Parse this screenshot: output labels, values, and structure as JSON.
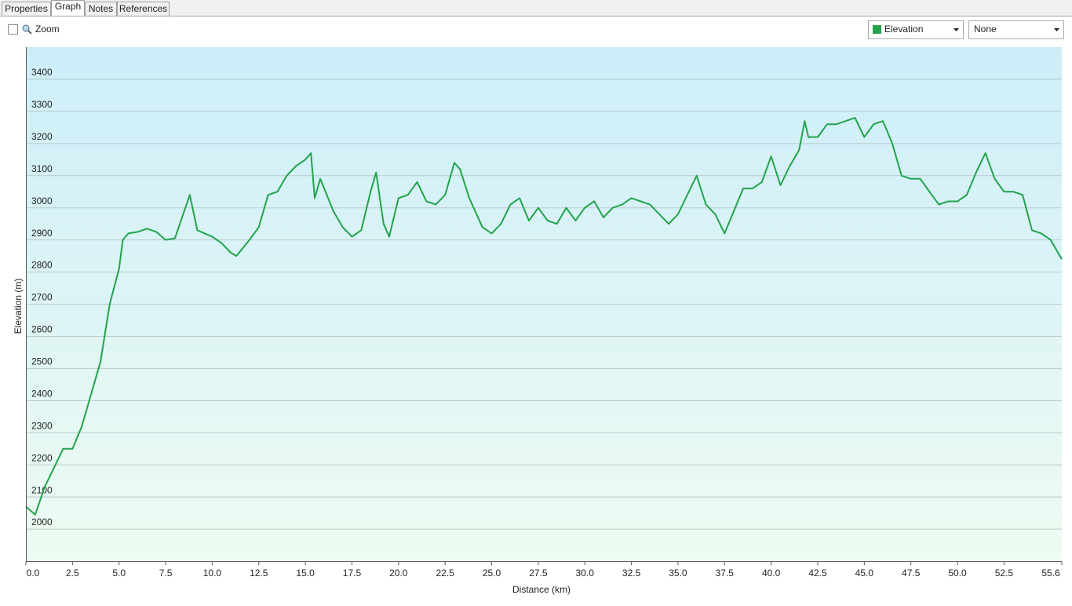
{
  "tabs": [
    "Properties",
    "Graph",
    "Notes",
    "References"
  ],
  "toolbar": {
    "zoom": "Zoom",
    "second_select": "None"
  },
  "chart_data": {
    "type": "line",
    "x_label": "Distance  (km)",
    "y_label": "Elevation (m)",
    "xlim": [
      0,
      55.6
    ],
    "ylim": [
      1900,
      3500
    ],
    "xticks": [
      {
        "value": 0,
        "label": "0.0"
      },
      2.5,
      {
        "value": 5,
        "label": "5.0"
      },
      7.5,
      {
        "value": 10,
        "label": "10.0"
      },
      12.5,
      {
        "value": 15,
        "label": "15.0"
      },
      17.5,
      {
        "value": 20,
        "label": "20.0"
      },
      22.5,
      {
        "value": 25,
        "label": "25.0"
      },
      27.5,
      {
        "value": 30,
        "label": "30.0"
      },
      32.5,
      {
        "value": 35,
        "label": "35.0"
      },
      37.5,
      {
        "value": 40,
        "label": "40.0"
      },
      42.5,
      {
        "value": 45,
        "label": "45.0"
      },
      47.5,
      {
        "value": 50,
        "label": "50.0"
      },
      52.5,
      55.6
    ],
    "yticks": [
      2000,
      2100,
      2200,
      2300,
      2400,
      2500,
      2600,
      2700,
      2800,
      2900,
      3000,
      3100,
      3200,
      3300,
      3400
    ],
    "grid": true,
    "series": [
      {
        "name": "Elevation",
        "color": "#22a34a",
        "x": [
          0,
          0.5,
          1.0,
          1.5,
          2.0,
          2.5,
          3.0,
          3.5,
          4.0,
          4.5,
          5.0,
          5.2,
          5.5,
          6.0,
          6.5,
          7.0,
          7.5,
          8.0,
          8.5,
          8.8,
          9.2,
          10.0,
          10.5,
          11.0,
          11.3,
          12.0,
          12.5,
          13.0,
          13.5,
          14.0,
          14.5,
          15.0,
          15.3,
          15.5,
          15.8,
          16.5,
          17.0,
          17.5,
          18.0,
          18.5,
          18.8,
          19.2,
          19.5,
          20.0,
          20.5,
          21.0,
          21.5,
          22.0,
          22.5,
          23.0,
          23.3,
          23.8,
          24.5,
          25.0,
          25.5,
          26.0,
          26.5,
          27.0,
          27.5,
          28.0,
          28.5,
          29.0,
          29.5,
          30.0,
          30.5,
          31.0,
          31.5,
          32.0,
          32.5,
          33.0,
          33.5,
          34.0,
          34.5,
          35.0,
          35.5,
          36.0,
          36.5,
          37.0,
          37.5,
          38.0,
          38.5,
          39.0,
          39.5,
          40.0,
          40.5,
          41.0,
          41.5,
          41.8,
          42.0,
          42.5,
          43.0,
          43.5,
          44.0,
          44.5,
          45.0,
          45.5,
          46.0,
          46.5,
          47.0,
          47.5,
          48.0,
          48.5,
          49.0,
          49.5,
          50.0,
          50.5,
          51.0,
          51.5,
          52.0,
          52.5,
          53.0,
          53.5,
          54.0,
          54.5,
          55.0,
          55.6
        ],
        "values": [
          2070,
          2045,
          2130,
          2190,
          2250,
          2250,
          2320,
          2420,
          2520,
          2700,
          2810,
          2900,
          2920,
          2925,
          2935,
          2925,
          2900,
          2905,
          2990,
          3040,
          2930,
          2910,
          2890,
          2860,
          2850,
          2900,
          2940,
          3040,
          3050,
          3100,
          3130,
          3150,
          3170,
          3030,
          3090,
          2990,
          2940,
          2910,
          2930,
          3050,
          3110,
          2950,
          2910,
          3030,
          3040,
          3080,
          3020,
          3010,
          3040,
          3140,
          3120,
          3030,
          2940,
          2920,
          2950,
          3010,
          3030,
          2960,
          3000,
          2960,
          2950,
          3000,
          2960,
          3000,
          3020,
          2970,
          3000,
          3010,
          3030,
          3020,
          3010,
          2980,
          2950,
          2980,
          3040,
          3100,
          3010,
          2980,
          2920,
          2990,
          3060,
          3060,
          3080,
          3160,
          3070,
          3130,
          3180,
          3270,
          3220,
          3220,
          3260,
          3260,
          3270,
          3280,
          3220,
          3260,
          3270,
          3200,
          3100,
          3090,
          3090,
          3050,
          3010,
          3020,
          3020,
          3040,
          3110,
          3170,
          3090,
          3050,
          3050,
          3040,
          2930,
          2920,
          2900,
          2840
        ]
      }
    ]
  }
}
